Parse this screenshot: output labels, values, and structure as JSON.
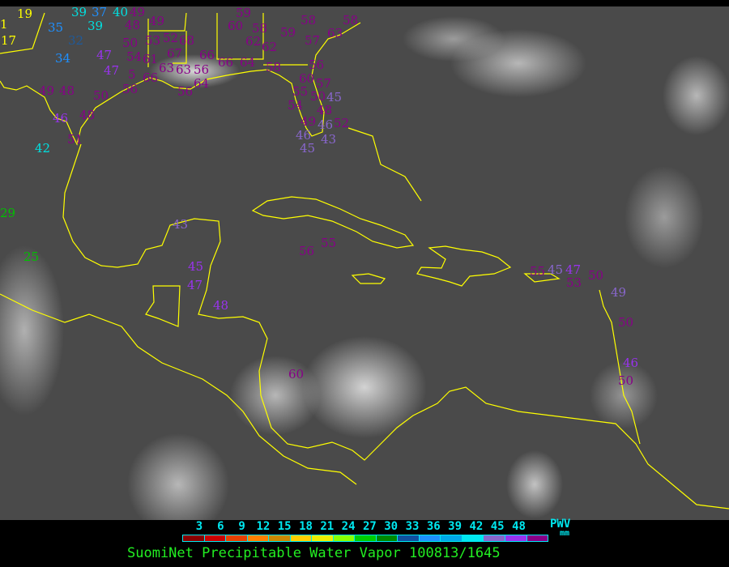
{
  "legend": {
    "ticks": [
      "3",
      "6",
      "9",
      "12",
      "15",
      "18",
      "21",
      "24",
      "27",
      "30",
      "33",
      "36",
      "39",
      "42",
      "45",
      "48"
    ],
    "swatches": [
      "#8b0000",
      "#cc0000",
      "#e84000",
      "#ff8000",
      "#cc8800",
      "#ffd000",
      "#eeee00",
      "#88ff00",
      "#00cc00",
      "#008800",
      "#1050a0",
      "#1e90ff",
      "#00a8e8",
      "#00e8f0",
      "#8866cc",
      "#9933ee",
      "#880088"
    ],
    "unit_title": "PWV",
    "unit": "mm"
  },
  "caption": "SuomiNet Precipitable Water Vapor 100813/1645",
  "colors": {
    "coastline": "#ffff00",
    "purple": "#880088",
    "violet": "#9933ee",
    "lavender": "#8866cc",
    "cyan": "#00e0e0",
    "blue": "#1e90ff",
    "darkblue": "#1f5a9a",
    "yellow": "#ffff00",
    "green": "#00c000"
  },
  "stations": [
    {
      "v": "19",
      "c": "yellow"
    },
    {
      "v": "1",
      "c": "yellow"
    },
    {
      "v": "17",
      "c": "yellow"
    },
    {
      "v": "39",
      "c": "cyan"
    },
    {
      "v": "37",
      "c": "blue"
    },
    {
      "v": "40",
      "c": "cyan"
    },
    {
      "v": "35",
      "c": "blue"
    },
    {
      "v": "39",
      "c": "cyan"
    },
    {
      "v": "32",
      "c": "darkblue"
    },
    {
      "v": "34",
      "c": "blue"
    },
    {
      "v": "47",
      "c": "violet"
    },
    {
      "v": "47",
      "c": "violet"
    },
    {
      "v": "49",
      "c": "purple"
    },
    {
      "v": "48",
      "c": "purple"
    },
    {
      "v": "49",
      "c": "purple"
    },
    {
      "v": "50",
      "c": "purple"
    },
    {
      "v": "53",
      "c": "purple"
    },
    {
      "v": "52",
      "c": "purple"
    },
    {
      "v": "68",
      "c": "purple"
    },
    {
      "v": "67",
      "c": "purple"
    },
    {
      "v": "54",
      "c": "purple"
    },
    {
      "v": "61",
      "c": "purple"
    },
    {
      "v": "63",
      "c": "purple"
    },
    {
      "v": "66",
      "c": "purple"
    },
    {
      "v": "5",
      "c": "purple"
    },
    {
      "v": "66",
      "c": "purple"
    },
    {
      "v": "63",
      "c": "purple"
    },
    {
      "v": "56",
      "c": "purple"
    },
    {
      "v": "64",
      "c": "purple"
    },
    {
      "v": "66",
      "c": "purple"
    },
    {
      "v": "64",
      "c": "purple"
    },
    {
      "v": "56",
      "c": "purple"
    },
    {
      "v": "56",
      "c": "purple"
    },
    {
      "v": "49",
      "c": "purple"
    },
    {
      "v": "48",
      "c": "purple"
    },
    {
      "v": "50",
      "c": "purple"
    },
    {
      "v": "46",
      "c": "violet"
    },
    {
      "v": "48",
      "c": "purple"
    },
    {
      "v": "51",
      "c": "purple"
    },
    {
      "v": "42",
      "c": "cyan"
    },
    {
      "v": "60",
      "c": "purple"
    },
    {
      "v": "59",
      "c": "purple"
    },
    {
      "v": "58",
      "c": "purple"
    },
    {
      "v": "62",
      "c": "purple"
    },
    {
      "v": "62",
      "c": "purple"
    },
    {
      "v": "59",
      "c": "purple"
    },
    {
      "v": "58",
      "c": "purple"
    },
    {
      "v": "57",
      "c": "purple"
    },
    {
      "v": "58",
      "c": "purple"
    },
    {
      "v": "63",
      "c": "purple"
    },
    {
      "v": "58",
      "c": "purple"
    },
    {
      "v": "56",
      "c": "purple"
    },
    {
      "v": "60",
      "c": "purple"
    },
    {
      "v": "57",
      "c": "purple"
    },
    {
      "v": "55",
      "c": "purple"
    },
    {
      "v": "50",
      "c": "purple"
    },
    {
      "v": "45",
      "c": "lavender"
    },
    {
      "v": "48",
      "c": "purple"
    },
    {
      "v": "54",
      "c": "purple"
    },
    {
      "v": "49",
      "c": "purple"
    },
    {
      "v": "46",
      "c": "lavender"
    },
    {
      "v": "52",
      "c": "purple"
    },
    {
      "v": "46",
      "c": "lavender"
    },
    {
      "v": "43",
      "c": "lavender"
    },
    {
      "v": "45",
      "c": "lavender"
    },
    {
      "v": "29",
      "c": "green"
    },
    {
      "v": "25",
      "c": "green"
    },
    {
      "v": "43",
      "c": "lavender"
    },
    {
      "v": "45",
      "c": "violet"
    },
    {
      "v": "47",
      "c": "violet"
    },
    {
      "v": "48",
      "c": "violet"
    },
    {
      "v": "55",
      "c": "purple"
    },
    {
      "v": "56",
      "c": "purple"
    },
    {
      "v": "60",
      "c": "purple"
    },
    {
      "v": "55",
      "c": "purple"
    },
    {
      "v": "45",
      "c": "lavender"
    },
    {
      "v": "47",
      "c": "violet"
    },
    {
      "v": "53",
      "c": "purple"
    },
    {
      "v": "50",
      "c": "purple"
    },
    {
      "v": "49",
      "c": "lavender"
    },
    {
      "v": "50",
      "c": "purple"
    },
    {
      "v": "46",
      "c": "violet"
    },
    {
      "v": "50",
      "c": "purple"
    }
  ]
}
